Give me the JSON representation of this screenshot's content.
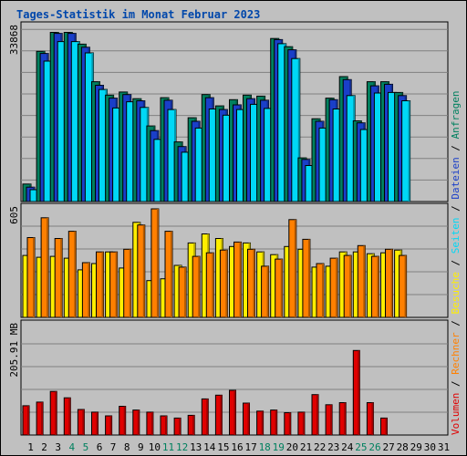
{
  "colors": {
    "background": "#c0c0c0",
    "title": "#0047ab",
    "anfragen": "#00805f",
    "dateien": "#1a3fc9",
    "seiten": "#00d8f6",
    "besuche": "#ffee00",
    "rechner": "#ff8000",
    "volumen": "#e00000",
    "weekend": "#00805f",
    "grid": "#808080"
  },
  "chart_data": {
    "type": "bar",
    "title": "Tages-Statistik im Monat Februar 2023",
    "categories": [
      "1",
      "2",
      "3",
      "4",
      "5",
      "6",
      "7",
      "8",
      "9",
      "10",
      "11",
      "12",
      "13",
      "14",
      "15",
      "16",
      "17",
      "18",
      "19",
      "20",
      "21",
      "22",
      "23",
      "24",
      "25",
      "26",
      "27",
      "28",
      "29",
      "30",
      "31"
    ],
    "weekend_days": [
      "4",
      "5",
      "11",
      "12",
      "18",
      "19",
      "25",
      "26"
    ],
    "panels": [
      {
        "id": "requests",
        "max_label": "33868",
        "ylim": [
          0,
          33868
        ],
        "series": [
          {
            "name": "Anfragen",
            "values": [
              3400,
              29200,
              32900,
              32900,
              30600,
              23300,
              20700,
              21300,
              20000,
              14700,
              20200,
              11600,
              16300,
              20800,
              18600,
              19800,
              20700,
              20500,
              31700,
              30100,
              8500,
              16100,
              20100,
              24300,
              15700,
              23300,
              23300,
              21200,
              null,
              null,
              null
            ]
          },
          {
            "name": "Dateien",
            "values": [
              2800,
              28800,
              32700,
              32700,
              30000,
              22600,
              20100,
              20800,
              19600,
              13800,
              19700,
              10700,
              15600,
              20200,
              17900,
              18800,
              20000,
              19700,
              31500,
              29500,
              8200,
              15600,
              19800,
              23700,
              15300,
              22500,
              22800,
              20600,
              null,
              null,
              null
            ]
          },
          {
            "name": "Seiten",
            "values": [
              2300,
              27300,
              31100,
              31100,
              28900,
              21800,
              18200,
              19400,
              18300,
              12100,
              17900,
              9600,
              14300,
              18000,
              16800,
              17900,
              18900,
              18100,
              30700,
              27800,
              7000,
              14300,
              18000,
              20600,
              14000,
              21100,
              21200,
              19600,
              null,
              null,
              null
            ]
          }
        ]
      },
      {
        "id": "visits",
        "max_label": "605",
        "ylim": [
          0,
          605
        ],
        "series": [
          {
            "name": "Besuche",
            "values": [
              345,
              335,
              340,
              330,
              265,
              300,
              365,
              275,
              530,
              205,
              215,
              290,
              415,
              465,
              440,
              395,
              415,
              365,
              350,
              395,
              380,
              280,
              285,
              365,
              365,
              355,
              360,
              375,
              null,
              null,
              null
            ]
          },
          {
            "name": "Rechner",
            "values": [
              445,
              555,
              440,
              480,
              305,
              365,
              365,
              380,
              515,
              605,
              480,
              280,
              340,
              360,
              375,
              420,
              380,
              285,
              325,
              545,
              435,
              300,
              330,
              345,
              400,
              340,
              380,
              345,
              null,
              null,
              null
            ]
          }
        ]
      },
      {
        "id": "volume",
        "max_label": "205.91 MB",
        "ylim": [
          0,
          205.91
        ],
        "series": [
          {
            "name": "Volumen",
            "values": [
              55,
              62,
              82,
              70,
              48,
              43,
              36,
              54,
              47,
              43,
              36,
              32,
              37,
              68,
              75,
              84,
              60,
              45,
              47,
              42,
              43,
              76,
              57,
              61,
              159,
              61,
              32,
              null,
              null,
              null,
              null
            ]
          }
        ]
      }
    ]
  },
  "legend": [
    {
      "text": "Volumen",
      "color": "volumen"
    },
    {
      "text": " / ",
      "color": "sep"
    },
    {
      "text": "Rechner",
      "color": "rechner"
    },
    {
      "text": " / ",
      "color": "sep"
    },
    {
      "text": "Besuche",
      "color": "besuche"
    },
    {
      "text": " / ",
      "color": "sep"
    },
    {
      "text": "Seiten",
      "color": "seiten"
    },
    {
      "text": " / ",
      "color": "sep"
    },
    {
      "text": "Dateien",
      "color": "dateien"
    },
    {
      "text": " / ",
      "color": "sep"
    },
    {
      "text": "Anfragen",
      "color": "anfragen"
    }
  ]
}
